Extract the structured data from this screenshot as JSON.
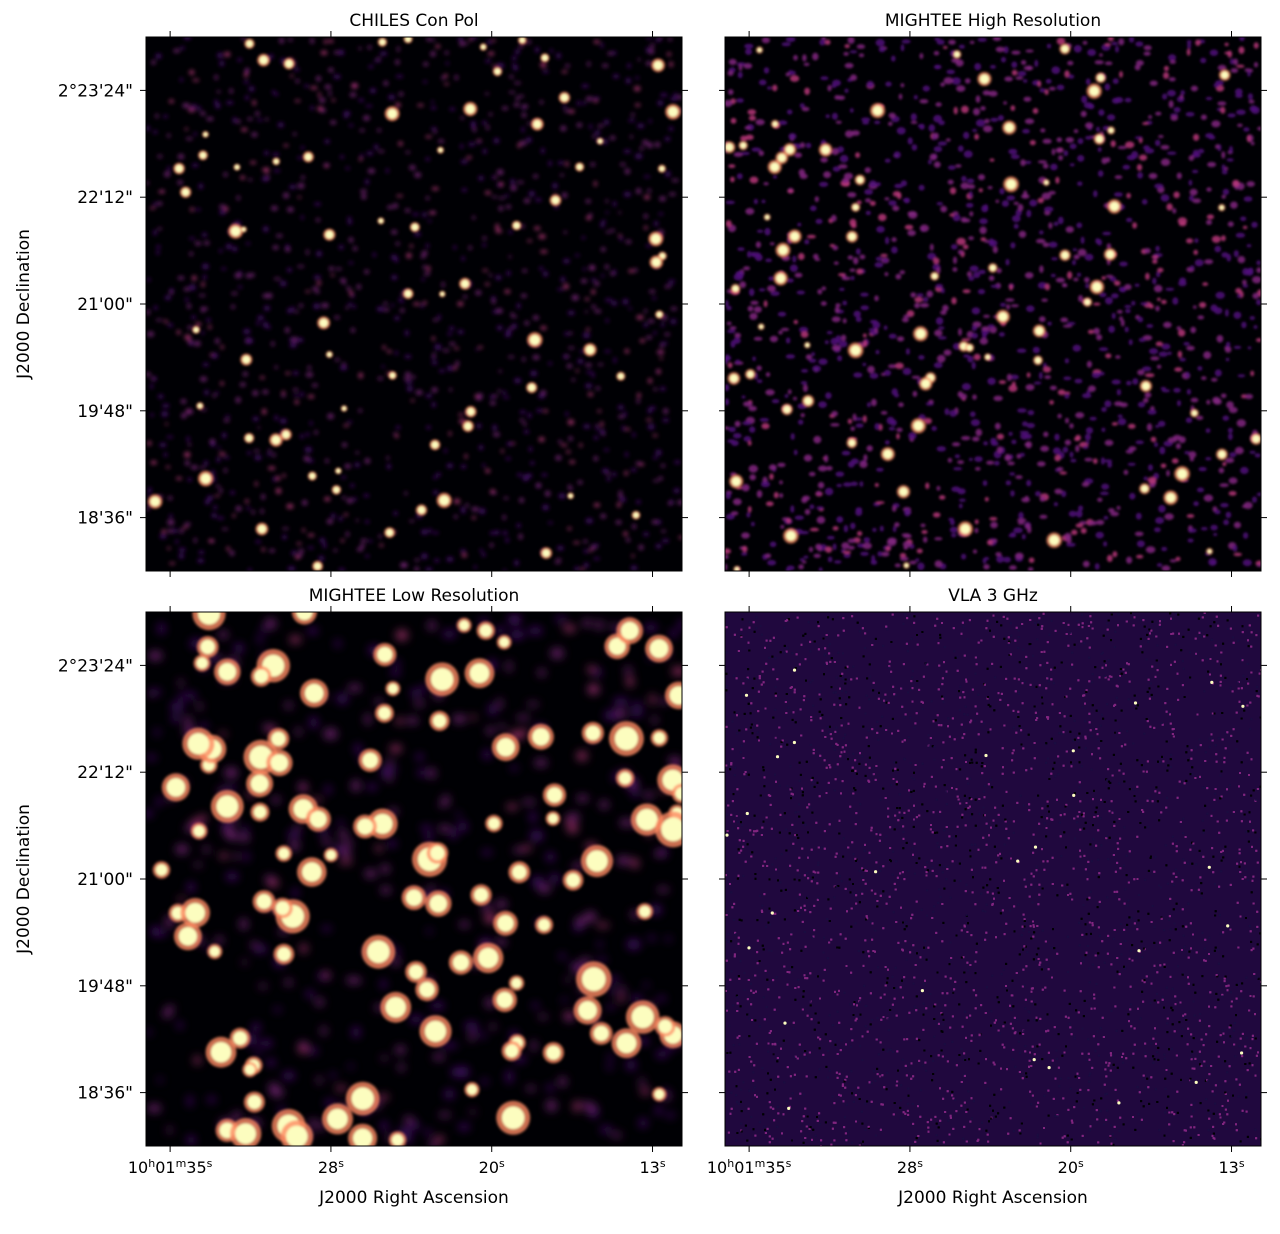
{
  "figure": {
    "colors": {
      "background": "#000004",
      "noise_dark": "#1b0c41",
      "noise_mid": "#51127c",
      "noise_light": "#822681",
      "source_mid": "#b73779",
      "source_bright": "#fc8961",
      "source_peak": "#fcfdbf",
      "vla_noise": "#3b0f70"
    },
    "panels": [
      {
        "title": "CHILES Con Pol",
        "style": "medium",
        "show_y_labels": true,
        "show_x_labels": false
      },
      {
        "title": "MIGHTEE High Resolution",
        "style": "high",
        "show_y_labels": false,
        "show_x_labels": false
      },
      {
        "title": "MIGHTEE Low Resolution",
        "style": "low",
        "show_y_labels": true,
        "show_x_labels": true
      },
      {
        "title": "VLA 3 GHz",
        "style": "vla",
        "show_y_labels": false,
        "show_x_labels": true
      }
    ],
    "y_axis": {
      "label": "J2000 Declination",
      "ticks": [
        "2°23'24\"",
        "22'12\"",
        "21'00\"",
        "19'48\"",
        "18'36\""
      ]
    },
    "x_axis": {
      "label": "J2000 Right Ascension",
      "ticks": [
        {
          "base": "10",
          "parts": [
            [
              "h",
              "01"
            ],
            [
              "m",
              "35"
            ],
            [
              "s",
              ""
            ]
          ]
        },
        {
          "base": "28",
          "parts": [
            [
              "s",
              ""
            ]
          ]
        },
        {
          "base": "20",
          "parts": [
            [
              "s",
              ""
            ]
          ]
        },
        {
          "base": "13",
          "parts": [
            [
              "s",
              ""
            ]
          ]
        }
      ]
    }
  }
}
